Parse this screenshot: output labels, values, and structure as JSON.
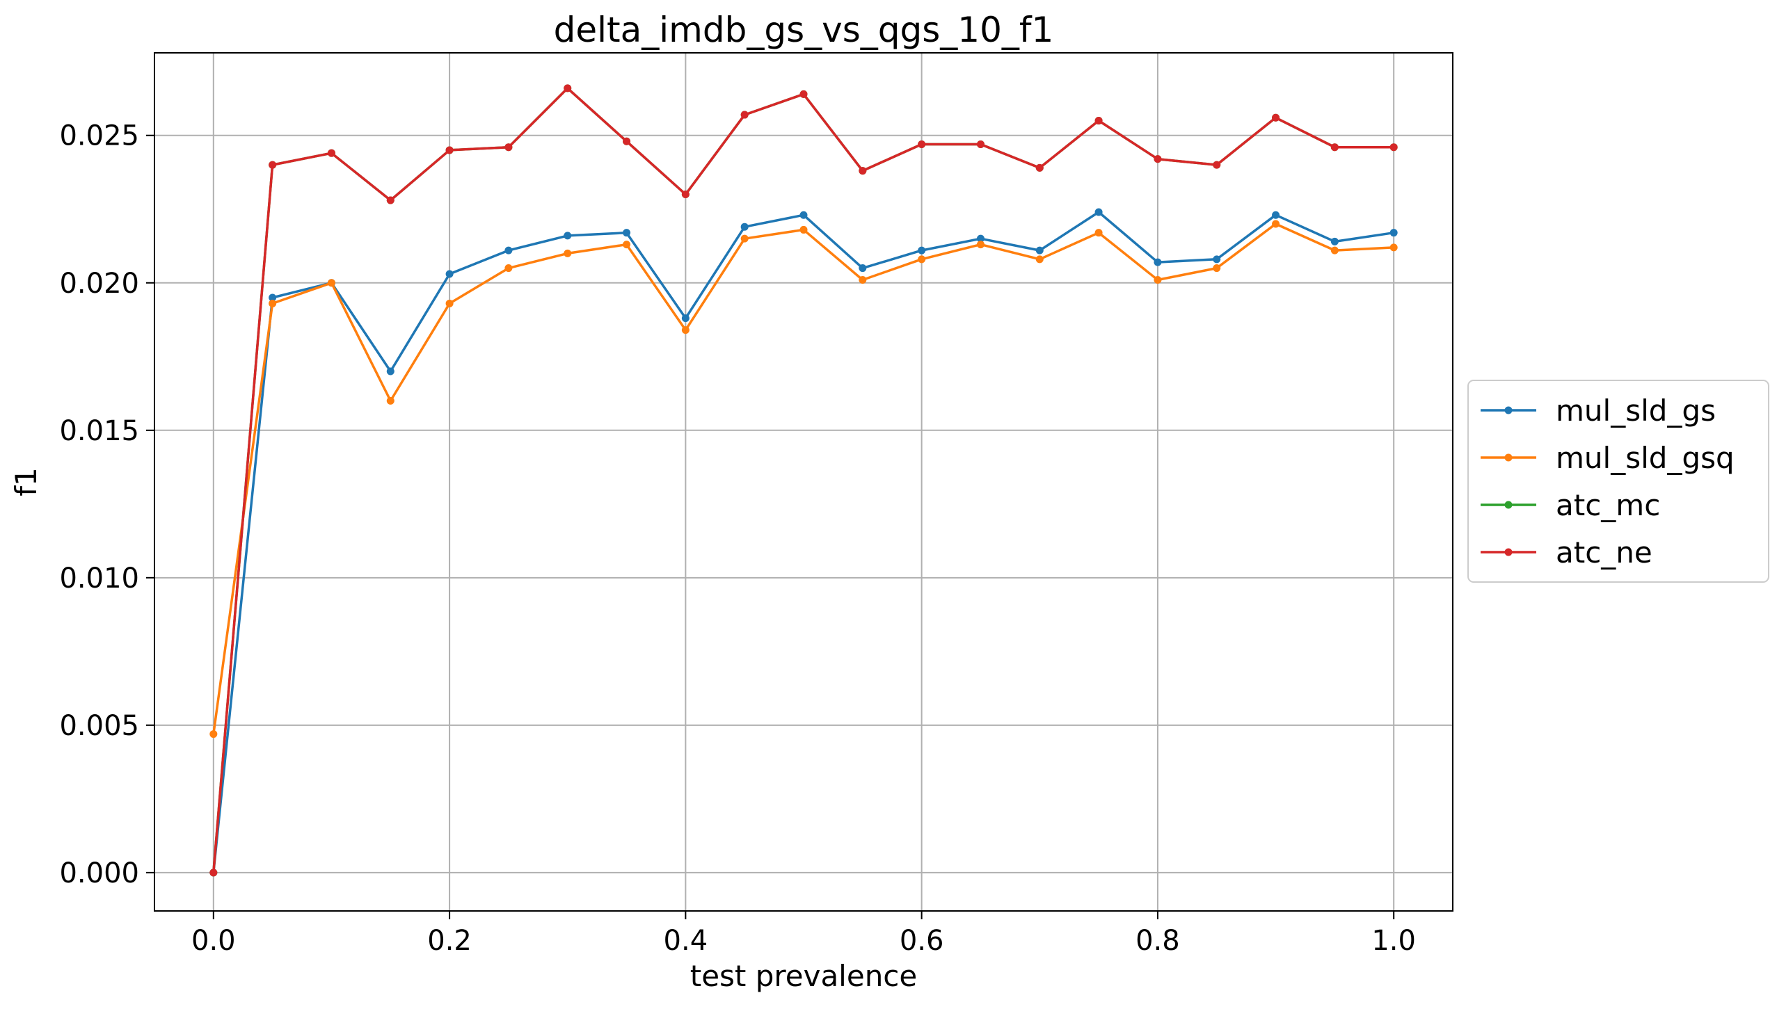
{
  "chart_data": {
    "type": "line",
    "title": "delta_imdb_gs_vs_qgs_10_f1",
    "xlabel": "test prevalence",
    "ylabel": "f1",
    "xlim": [
      -0.05,
      1.05
    ],
    "ylim": [
      -0.0013,
      0.0278
    ],
    "xticks": [
      0.0,
      0.2,
      0.4,
      0.6,
      0.8,
      1.0
    ],
    "xtick_labels": [
      "0.0",
      "0.2",
      "0.4",
      "0.6",
      "0.8",
      "1.0"
    ],
    "yticks": [
      0.0,
      0.005,
      0.01,
      0.015,
      0.02,
      0.025
    ],
    "ytick_labels": [
      "0.000",
      "0.005",
      "0.010",
      "0.015",
      "0.020",
      "0.025"
    ],
    "grid": true,
    "legend_position": "center-right outside",
    "x": [
      0.0,
      0.05,
      0.1,
      0.15,
      0.2,
      0.25,
      0.3,
      0.35,
      0.4,
      0.45,
      0.5,
      0.55,
      0.6,
      0.65,
      0.7,
      0.75,
      0.8,
      0.85,
      0.9,
      0.95,
      1.0
    ],
    "series": [
      {
        "name": "mul_sld_gs",
        "color": "#1f77b4",
        "values": [
          0.0,
          0.0195,
          0.02,
          0.017,
          0.0203,
          0.0211,
          0.0216,
          0.0217,
          0.0188,
          0.0219,
          0.0223,
          0.0205,
          0.0211,
          0.0215,
          0.0211,
          0.0224,
          0.0207,
          0.0208,
          0.0223,
          0.0214,
          0.0217
        ]
      },
      {
        "name": "mul_sld_gsq",
        "color": "#ff7f0e",
        "values": [
          0.0047,
          0.0193,
          0.02,
          0.016,
          0.0193,
          0.0205,
          0.021,
          0.0213,
          0.0184,
          0.0215,
          0.0218,
          0.0201,
          0.0208,
          0.0213,
          0.0208,
          0.0217,
          0.0201,
          0.0205,
          0.022,
          0.0211,
          0.0212
        ]
      },
      {
        "name": "atc_mc",
        "color": "#2ca02c",
        "values": [
          0.0,
          0.024,
          0.0244,
          0.0228,
          0.0245,
          0.0246,
          0.0266,
          0.0248,
          0.023,
          0.0257,
          0.0264,
          0.0238,
          0.0247,
          0.0247,
          0.0239,
          0.0255,
          0.0242,
          0.024,
          0.0256,
          0.0246,
          0.0246
        ]
      },
      {
        "name": "atc_ne",
        "color": "#d62728",
        "values": [
          0.0,
          0.024,
          0.0244,
          0.0228,
          0.0245,
          0.0246,
          0.0266,
          0.0248,
          0.023,
          0.0257,
          0.0264,
          0.0238,
          0.0247,
          0.0247,
          0.0239,
          0.0255,
          0.0242,
          0.024,
          0.0256,
          0.0246,
          0.0246
        ]
      }
    ]
  }
}
